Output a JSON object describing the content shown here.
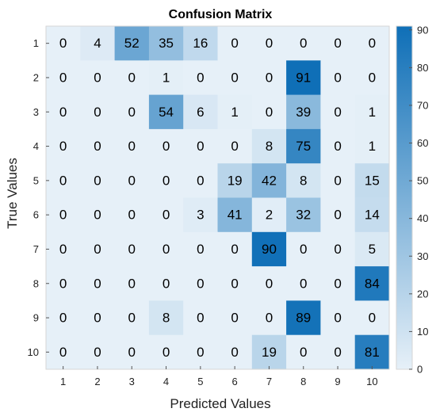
{
  "chart_data": {
    "type": "heatmap",
    "title": "Confusion Matrix",
    "xlabel": "Predicted Values",
    "ylabel": "True Values",
    "x_categories": [
      "1",
      "2",
      "3",
      "4",
      "5",
      "6",
      "7",
      "8",
      "9",
      "10"
    ],
    "y_categories": [
      "1",
      "2",
      "3",
      "4",
      "5",
      "6",
      "7",
      "8",
      "9",
      "10"
    ],
    "values": [
      [
        0,
        4,
        52,
        35,
        16,
        0,
        0,
        0,
        0,
        0
      ],
      [
        0,
        0,
        0,
        1,
        0,
        0,
        0,
        91,
        0,
        0
      ],
      [
        0,
        0,
        0,
        54,
        6,
        1,
        0,
        39,
        0,
        1
      ],
      [
        0,
        0,
        0,
        0,
        0,
        0,
        8,
        75,
        0,
        1
      ],
      [
        0,
        0,
        0,
        0,
        0,
        19,
        42,
        8,
        0,
        15
      ],
      [
        0,
        0,
        0,
        0,
        3,
        41,
        2,
        32,
        0,
        14
      ],
      [
        0,
        0,
        0,
        0,
        0,
        0,
        90,
        0,
        0,
        5
      ],
      [
        0,
        0,
        0,
        0,
        0,
        0,
        0,
        0,
        0,
        84
      ],
      [
        0,
        0,
        0,
        8,
        0,
        0,
        0,
        89,
        0,
        0
      ],
      [
        0,
        0,
        0,
        0,
        0,
        0,
        19,
        0,
        0,
        81
      ]
    ],
    "colorbar": {
      "min": 0,
      "max": 91,
      "ticks": [
        "0",
        "10",
        "20",
        "30",
        "40",
        "50",
        "60",
        "70",
        "80",
        "90"
      ],
      "tick_values": [
        0,
        10,
        20,
        30,
        40,
        50,
        60,
        70,
        80,
        90
      ],
      "color_low": "#e6f0f8",
      "color_high": "#0f6fb7"
    },
    "grid": false,
    "colorbar_position": "right"
  }
}
